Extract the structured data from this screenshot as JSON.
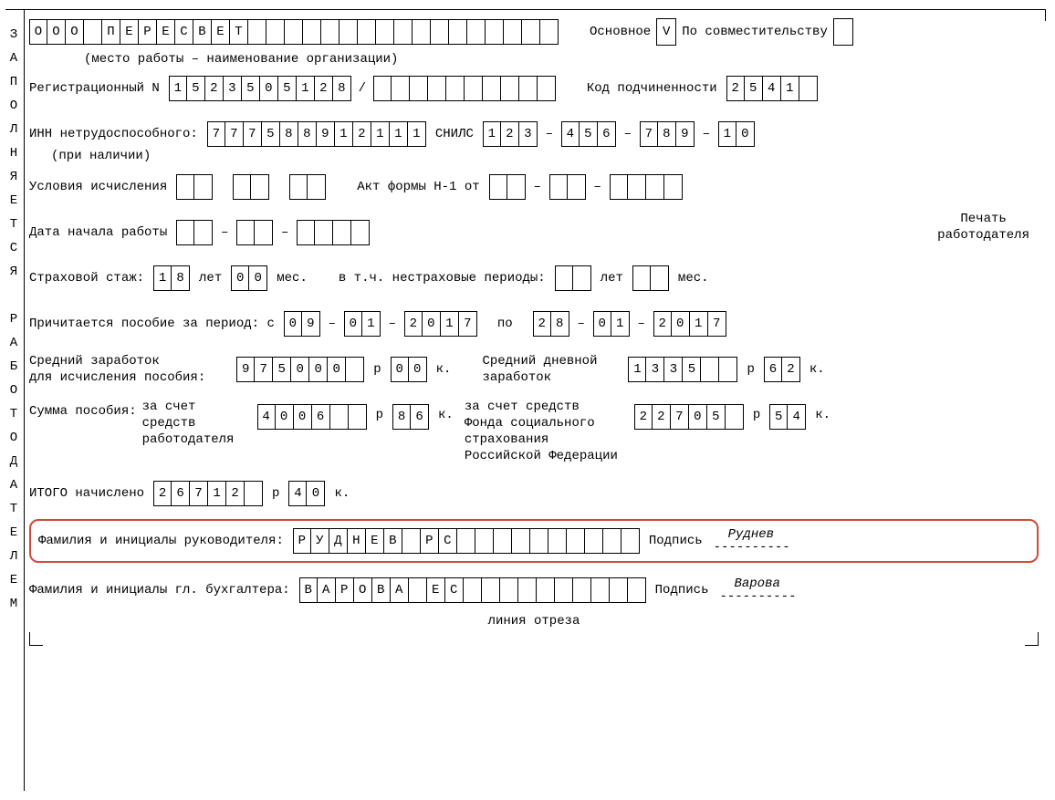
{
  "vertical_label": "З\nА\nП\nО\nЛ\nН\nЯ\nЕ\nТ\nС\nЯ\n\nР\nА\nБ\nО\nТ\nО\nД\nА\nТ\nЕ\nЛ\nЕ\nМ",
  "org": {
    "name_cells": [
      "О",
      "О",
      "О",
      "",
      "П",
      "Е",
      "Р",
      "Е",
      "С",
      "В",
      "Е",
      "Т",
      "",
      "",
      "",
      "",
      "",
      "",
      "",
      "",
      "",
      "",
      "",
      "",
      "",
      "",
      "",
      "",
      ""
    ],
    "label_main": "Основное",
    "main_check": "V",
    "label_parttime": "По совместительству",
    "parttime_check": "",
    "footnote": "(место работы – наименование организации)"
  },
  "reg": {
    "label": "Регистрационный N",
    "num_cells": [
      "1",
      "5",
      "2",
      "3",
      "5",
      "0",
      "5",
      "1",
      "2",
      "8"
    ],
    "slash": "/",
    "ext_cells": [
      "",
      "",
      "",
      "",
      "",
      "",
      "",
      "",
      "",
      ""
    ],
    "sub_label": "Код подчиненности",
    "sub_cells": [
      "2",
      "5",
      "4",
      "1",
      ""
    ]
  },
  "inn": {
    "label": "ИНН нетрудоспособного:",
    "note": "(при наличии)",
    "cells": [
      "7",
      "7",
      "7",
      "5",
      "8",
      "8",
      "9",
      "1",
      "2",
      "1",
      "1",
      "1"
    ],
    "snils_label": "СНИЛС",
    "snils1": [
      "1",
      "2",
      "3"
    ],
    "snils2": [
      "4",
      "5",
      "6"
    ],
    "snils3": [
      "7",
      "8",
      "9"
    ],
    "snils4": [
      "1",
      "0"
    ]
  },
  "stamp": {
    "line1": "Печать",
    "line2": "работодателя"
  },
  "cond": {
    "label": "Условия исчисления",
    "c1": [
      "",
      ""
    ],
    "c2": [
      "",
      ""
    ],
    "c3": [
      "",
      ""
    ],
    "act_label": "Акт формы Н-1 от",
    "d1": [
      "",
      ""
    ],
    "d2": [
      "",
      ""
    ],
    "d3": [
      "",
      "",
      "",
      ""
    ]
  },
  "start_date": {
    "label": "Дата начала работы",
    "d1": [
      "",
      ""
    ],
    "d2": [
      "",
      ""
    ],
    "d3": [
      "",
      "",
      "",
      ""
    ]
  },
  "stazh": {
    "label": "Страховой стаж:",
    "years": [
      "1",
      "8"
    ],
    "y_label": "лет",
    "months": [
      "0",
      "0"
    ],
    "m_label": "мес.",
    "nonins_label": "в т.ч. нестраховые периоды:",
    "ni_years": [
      "",
      ""
    ],
    "ni_y_label": "лет",
    "ni_months": [
      "",
      ""
    ],
    "ni_m_label": "мес."
  },
  "period": {
    "label": "Причитается пособие за период: с",
    "from1": [
      "0",
      "9"
    ],
    "from2": [
      "0",
      "1"
    ],
    "from3": [
      "2",
      "0",
      "1",
      "7"
    ],
    "to_label": "по",
    "to1": [
      "2",
      "8"
    ],
    "to2": [
      "0",
      "1"
    ],
    "to3": [
      "2",
      "0",
      "1",
      "7"
    ]
  },
  "avg": {
    "line1": "Средний заработок",
    "line2": "для исчисления пособия:",
    "rub": [
      "9",
      "7",
      "5",
      "0",
      "0",
      "0",
      ""
    ],
    "r": "р",
    "kop": [
      "0",
      "0"
    ],
    "k": "к.",
    "daily_line1": "Средний дневной",
    "daily_line2": "заработок",
    "drub": [
      "1",
      "3",
      "3",
      "5",
      "",
      ""
    ],
    "dkop": [
      "6",
      "2"
    ]
  },
  "sum": {
    "label": "Сумма пособия:",
    "emp_line1": "за счет",
    "emp_line2": "средств",
    "emp_line3": "работодателя",
    "emp_rub": [
      "4",
      "0",
      "0",
      "6",
      "",
      ""
    ],
    "emp_kop": [
      "8",
      "6"
    ],
    "fss_line1": "за счет средств",
    "fss_line2": "Фонда социального",
    "fss_line3": "страхования",
    "fss_line4": "Российской Федерации",
    "fss_rub": [
      "2",
      "2",
      "7",
      "0",
      "5",
      ""
    ],
    "fss_kop": [
      "5",
      "4"
    ],
    "r": "р",
    "k": "к."
  },
  "total": {
    "label": "ИТОГО   начислено",
    "rub": [
      "2",
      "6",
      "7",
      "1",
      "2",
      ""
    ],
    "r": "р",
    "kop": [
      "4",
      "0"
    ],
    "k": "к."
  },
  "director": {
    "label": "Фамилия и инициалы руководителя:",
    "cells": [
      "Р",
      "У",
      "Д",
      "Н",
      "Е",
      "В",
      "",
      "Р",
      "С",
      "",
      "",
      "",
      "",
      "",
      "",
      "",
      "",
      "",
      ""
    ],
    "sig_label": "Подпись",
    "sig_name": "Руднев",
    "dash": "----------"
  },
  "accountant": {
    "label": "Фамилия и инициалы гл. бухгалтера:",
    "cells": [
      "В",
      "А",
      "Р",
      "О",
      "В",
      "А",
      "",
      "Е",
      "С",
      "",
      "",
      "",
      "",
      "",
      "",
      "",
      "",
      "",
      ""
    ],
    "sig_label": "Подпись",
    "sig_name": "Варова",
    "dash": "----------"
  },
  "cut_line": "линия отреза"
}
